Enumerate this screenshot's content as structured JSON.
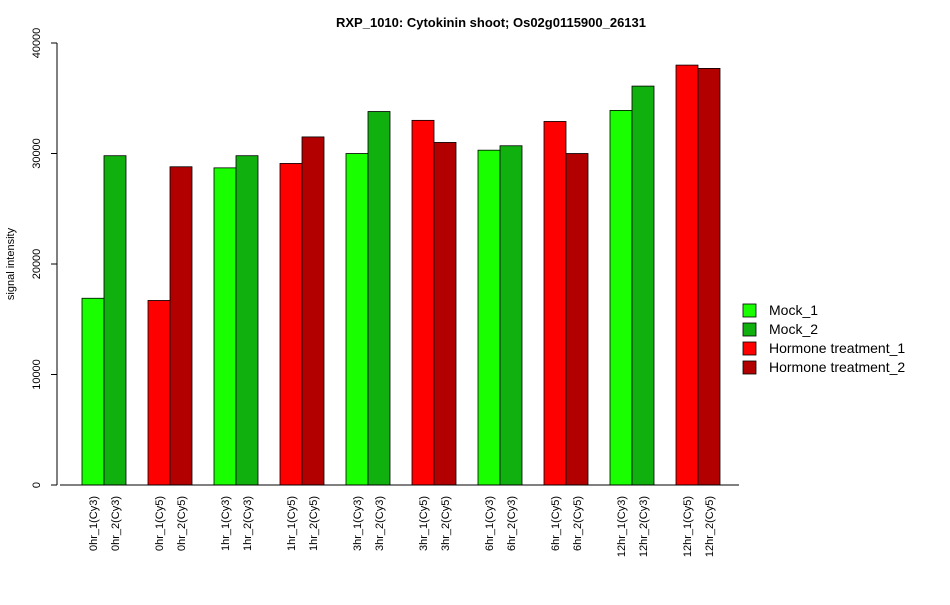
{
  "chart_data": {
    "type": "bar",
    "title": "RXP_1010: Cytokinin shoot; Os02g0115900_26131",
    "xlabel": "",
    "ylabel": "signal intensity",
    "ylim": [
      0,
      40000
    ],
    "yticks": [
      0,
      10000,
      20000,
      30000,
      40000
    ],
    "ytick_labels": [
      "0",
      "10000",
      "20000",
      "30000",
      "40000"
    ],
    "grid": false,
    "legend_position": "right",
    "categories": [
      "0hr_1(Cy3)",
      "0hr_2(Cy3)",
      "0hr_1(Cy5)",
      "0hr_2(Cy5)",
      "1hr_1(Cy3)",
      "1hr_2(Cy3)",
      "1hr_1(Cy5)",
      "1hr_2(Cy5)",
      "3hr_1(Cy3)",
      "3hr_2(Cy3)",
      "3hr_1(Cy5)",
      "3hr_2(Cy5)",
      "6hr_1(Cy3)",
      "6hr_2(Cy3)",
      "6hr_1(Cy5)",
      "6hr_2(Cy5)",
      "12hr_1(Cy3)",
      "12hr_2(Cy3)",
      "12hr_1(Cy5)",
      "12hr_2(Cy5)"
    ],
    "values": [
      16900,
      29800,
      16700,
      28800,
      28700,
      29800,
      29100,
      31500,
      30000,
      33800,
      33000,
      31000,
      30300,
      30700,
      32900,
      30000,
      33900,
      36100,
      38000,
      37700
    ],
    "bar_series": [
      0,
      1,
      2,
      3,
      0,
      1,
      2,
      3,
      0,
      1,
      2,
      3,
      0,
      1,
      2,
      3,
      0,
      1,
      2,
      3
    ],
    "series": [
      {
        "name": "Mock_1",
        "color": "#1aff00"
      },
      {
        "name": "Mock_2",
        "color": "#10b10e"
      },
      {
        "name": "Hormone treatment_1",
        "color": "#ff0000"
      },
      {
        "name": "Hormone treatment_2",
        "color": "#b20000"
      }
    ]
  }
}
